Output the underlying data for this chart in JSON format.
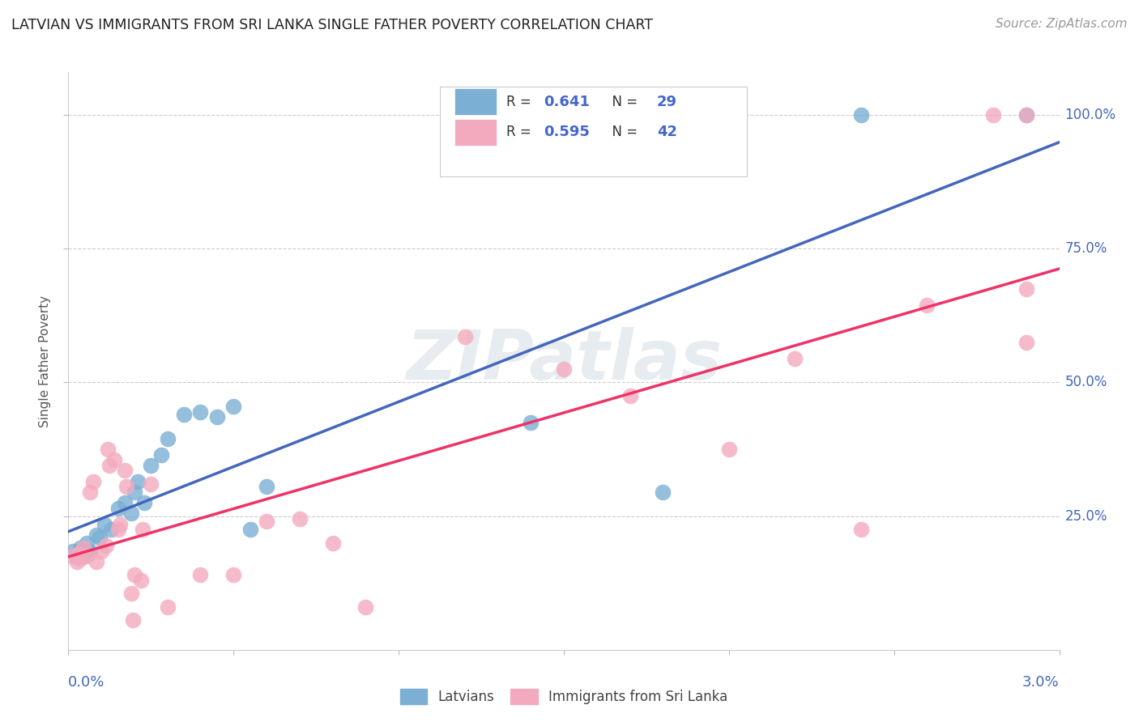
{
  "title": "LATVIAN VS IMMIGRANTS FROM SRI LANKA SINGLE FATHER POVERTY CORRELATION CHART",
  "source": "Source: ZipAtlas.com",
  "ylabel": "Single Father Poverty",
  "watermark": "ZIPatlas",
  "legend_label1": "Latvians",
  "legend_label2": "Immigrants from Sri Lanka",
  "blue_color": "#7BAFD4",
  "pink_color": "#F4AABE",
  "blue_line_color": "#4466BB",
  "pink_line_color": "#EE3366",
  "ytick_labels": [
    "100.0%",
    "75.0%",
    "50.0%",
    "25.0%"
  ],
  "ytick_values": [
    1.0,
    0.75,
    0.5,
    0.25
  ],
  "xlim": [
    0.0,
    0.03
  ],
  "ylim": [
    0.0,
    1.08
  ],
  "latvians_x": [
    0.00015,
    0.00025,
    0.00035,
    0.00045,
    0.00055,
    0.00065,
    0.00085,
    0.00095,
    0.0011,
    0.0013,
    0.0015,
    0.0017,
    0.0019,
    0.002,
    0.0021,
    0.0023,
    0.0025,
    0.0028,
    0.003,
    0.0035,
    0.004,
    0.0045,
    0.005,
    0.0055,
    0.006,
    0.014,
    0.018,
    0.024,
    0.029
  ],
  "latvians_y": [
    0.185,
    0.175,
    0.19,
    0.175,
    0.2,
    0.185,
    0.215,
    0.21,
    0.235,
    0.225,
    0.265,
    0.275,
    0.255,
    0.295,
    0.315,
    0.275,
    0.345,
    0.365,
    0.395,
    0.44,
    0.445,
    0.435,
    0.455,
    0.225,
    0.305,
    0.425,
    0.295,
    1.0,
    1.0
  ],
  "srilanka_x": [
    0.00015,
    0.00025,
    0.0003,
    0.00035,
    0.00045,
    0.00055,
    0.00065,
    0.00075,
    0.00085,
    0.001,
    0.00115,
    0.0012,
    0.00125,
    0.0014,
    0.0015,
    0.00155,
    0.0017,
    0.00175,
    0.0019,
    0.00195,
    0.002,
    0.0022,
    0.00225,
    0.0025,
    0.003,
    0.004,
    0.005,
    0.006,
    0.007,
    0.008,
    0.009,
    0.012,
    0.015,
    0.017,
    0.02,
    0.022,
    0.024,
    0.026,
    0.028,
    0.029,
    0.029,
    0.029
  ],
  "srilanka_y": [
    0.175,
    0.165,
    0.18,
    0.17,
    0.19,
    0.175,
    0.295,
    0.315,
    0.165,
    0.185,
    0.195,
    0.375,
    0.345,
    0.355,
    0.225,
    0.235,
    0.335,
    0.305,
    0.105,
    0.055,
    0.14,
    0.13,
    0.225,
    0.31,
    0.08,
    0.14,
    0.14,
    0.24,
    0.245,
    0.2,
    0.08,
    0.585,
    0.525,
    0.475,
    0.375,
    0.545,
    0.225,
    0.645,
    1.0,
    1.0,
    0.675,
    0.575
  ]
}
